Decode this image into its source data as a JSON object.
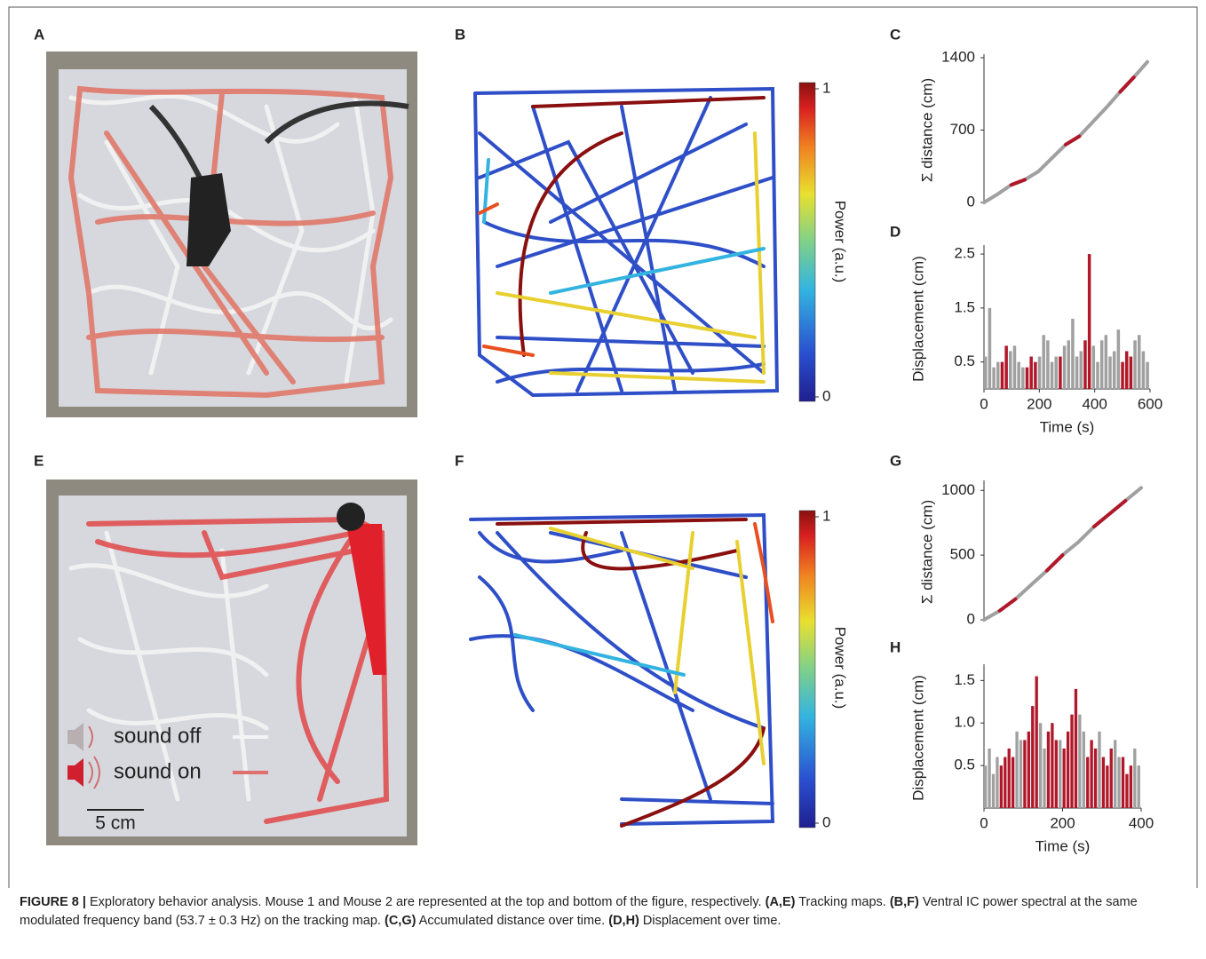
{
  "figure": {
    "panel_labels": [
      "A",
      "B",
      "C",
      "D",
      "E",
      "F",
      "G",
      "H"
    ],
    "colorbar": {
      "label": "Power (a.u.)",
      "ticks": [
        0,
        1
      ]
    },
    "legend": {
      "sound_off": "sound off",
      "sound_on": "sound on",
      "scale_bar": "5 cm"
    },
    "caption": [
      {
        "text": "FIGURE 8 |",
        "bold": true
      },
      {
        "text": " Exploratory behavior analysis. Mouse 1 and Mouse 2 are represented at the top and bottom of the figure, respectively. ",
        "bold": false
      },
      {
        "text": "(A,E)",
        "bold": true
      },
      {
        "text": " Tracking maps. ",
        "bold": false
      },
      {
        "text": "(B,F)",
        "bold": true
      },
      {
        "text": " Ventral IC power spectral at the same modulated frequency band (53.7 ± 0.3 Hz) on the tracking map. ",
        "bold": false
      },
      {
        "text": "(C,G)",
        "bold": true
      },
      {
        "text": " Accumulated distance over time. ",
        "bold": false
      },
      {
        "text": "(D,H)",
        "bold": true
      },
      {
        "text": " Displacement over time.",
        "bold": false
      }
    ]
  },
  "chart_data": [
    {
      "type": "line",
      "ylabel": "Σ distance (cm)",
      "xlim": [
        0,
        600
      ],
      "ylim": [
        0,
        1400
      ],
      "yticks": [
        0,
        700,
        1400
      ],
      "x": [
        0,
        50,
        100,
        150,
        200,
        250,
        300,
        350,
        400,
        450,
        500,
        550,
        600
      ],
      "series": [
        {
          "color": "#a0a0a0",
          "values": [
            0,
            80,
            170,
            220,
            300,
            430,
            560,
            640,
            780,
            920,
            1070,
            1210,
            1360
          ]
        },
        {
          "color": "#b0182a",
          "values": [
            null,
            null,
            170,
            220,
            null,
            null,
            560,
            640,
            null,
            null,
            1070,
            1210,
            null
          ]
        }
      ]
    },
    {
      "type": "bar",
      "ylabel": "Displacement (cm)",
      "xlabel": "Time (s)",
      "xlim": [
        0,
        600
      ],
      "ylim": [
        0,
        2.6
      ],
      "xticks": [
        0,
        200,
        400,
        600
      ],
      "yticks": [
        0.5,
        1.5,
        2.5
      ],
      "x": [
        0,
        15,
        30,
        45,
        60,
        75,
        90,
        105,
        120,
        135,
        150,
        165,
        180,
        195,
        210,
        225,
        240,
        255,
        270,
        285,
        300,
        315,
        330,
        345,
        360,
        375,
        390,
        405,
        420,
        435,
        450,
        465,
        480,
        495,
        510,
        525,
        540,
        555,
        570,
        585
      ],
      "series": [
        {
          "color": "#a0a0a0",
          "values": [
            0.6,
            1.5,
            0.4,
            0.5,
            null,
            null,
            0.7,
            0.8,
            0.5,
            0.4,
            null,
            null,
            null,
            0.6,
            1.0,
            0.9,
            0.5,
            0.6,
            null,
            0.8,
            0.9,
            1.3,
            0.6,
            0.7,
            null,
            null,
            0.8,
            0.5,
            0.9,
            1.0,
            0.6,
            0.7,
            1.1,
            null,
            null,
            null,
            0.9,
            1.0,
            0.7,
            0.5
          ]
        },
        {
          "color": "#b0182a",
          "values": [
            null,
            null,
            null,
            null,
            0.5,
            0.8,
            null,
            null,
            null,
            null,
            0.4,
            0.6,
            0.5,
            null,
            null,
            null,
            null,
            null,
            0.6,
            null,
            null,
            null,
            null,
            null,
            0.9,
            2.5,
            null,
            null,
            null,
            null,
            null,
            null,
            null,
            0.5,
            0.7,
            0.6,
            null,
            null,
            null,
            null
          ]
        }
      ]
    },
    {
      "type": "line",
      "ylabel": "Σ distance (cm)",
      "xlim": [
        0,
        400
      ],
      "ylim": [
        0,
        1050
      ],
      "yticks": [
        0,
        500,
        1000
      ],
      "x": [
        0,
        40,
        80,
        120,
        160,
        200,
        240,
        280,
        320,
        360,
        400
      ],
      "series": [
        {
          "color": "#a0a0a0",
          "values": [
            0,
            70,
            160,
            270,
            380,
            500,
            600,
            720,
            820,
            920,
            1020
          ]
        },
        {
          "color": "#b0182a",
          "values": [
            null,
            70,
            160,
            null,
            380,
            500,
            null,
            720,
            820,
            920,
            null
          ]
        }
      ]
    },
    {
      "type": "bar",
      "ylabel": "Displacement (cm)",
      "xlabel": "Time (s)",
      "xlim": [
        0,
        400
      ],
      "ylim": [
        0,
        1.65
      ],
      "xticks": [
        0,
        200,
        400
      ],
      "yticks": [
        0.5,
        {
          "value": 1,
          "label": "1.0"
        },
        1.5
      ],
      "x": [
        0,
        10,
        20,
        30,
        40,
        50,
        60,
        70,
        80,
        90,
        100,
        110,
        120,
        130,
        140,
        150,
        160,
        170,
        180,
        190,
        200,
        210,
        220,
        230,
        240,
        250,
        260,
        270,
        280,
        290,
        300,
        310,
        320,
        330,
        340,
        350,
        360,
        370,
        380,
        390
      ],
      "series": [
        {
          "color": "#a0a0a0",
          "values": [
            0.5,
            0.7,
            0.4,
            0.6,
            null,
            null,
            null,
            null,
            0.9,
            0.8,
            null,
            null,
            null,
            null,
            1.0,
            0.7,
            null,
            null,
            null,
            0.8,
            null,
            null,
            null,
            null,
            1.1,
            0.9,
            null,
            null,
            null,
            0.9,
            null,
            null,
            null,
            0.8,
            0.6,
            null,
            null,
            null,
            0.7,
            0.5
          ]
        },
        {
          "color": "#b0182a",
          "values": [
            null,
            null,
            null,
            null,
            0.5,
            0.6,
            0.7,
            0.6,
            null,
            null,
            0.8,
            0.9,
            1.2,
            1.55,
            null,
            null,
            0.9,
            1.0,
            0.8,
            null,
            0.7,
            0.9,
            1.1,
            1.4,
            null,
            null,
            0.6,
            0.8,
            0.7,
            null,
            0.6,
            0.5,
            0.7,
            null,
            null,
            0.6,
            0.4,
            0.5,
            null,
            null
          ]
        }
      ]
    }
  ]
}
